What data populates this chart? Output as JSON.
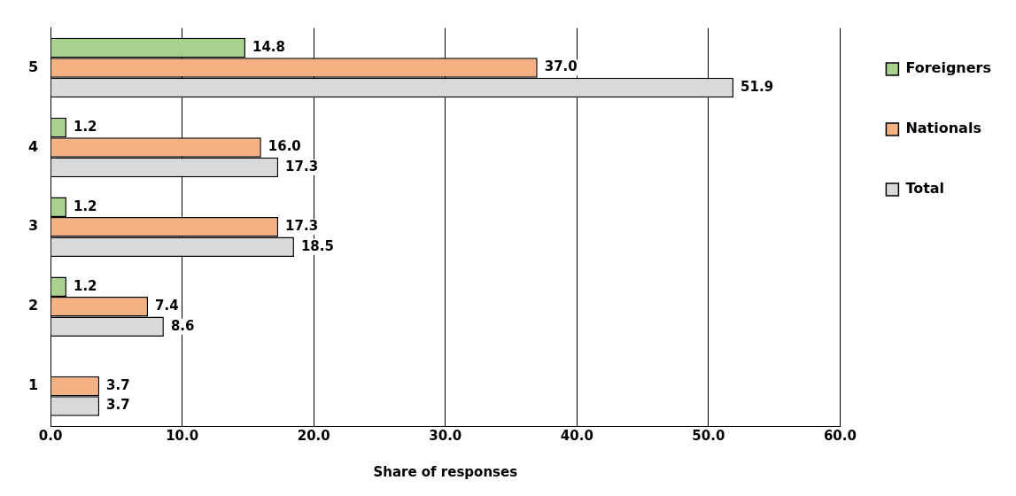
{
  "chart_data": {
    "type": "bar",
    "orientation": "horizontal",
    "xlabel": "Share of responses",
    "categories": [
      "5",
      "4",
      "3",
      "2",
      "1"
    ],
    "series": [
      {
        "name": "Foreigners",
        "color": "#a9d18e",
        "values": [
          14.8,
          1.2,
          1.2,
          1.2,
          null
        ],
        "value_labels": [
          "14.8",
          "1.2",
          "1.2",
          "1.2",
          null
        ]
      },
      {
        "name": "Nationals",
        "color": "#f4b183",
        "values": [
          37.0,
          16.0,
          17.3,
          7.4,
          3.7
        ],
        "value_labels": [
          "37.0",
          "16.0",
          "17.3",
          "7.4",
          "3.7"
        ]
      },
      {
        "name": "Total",
        "color": "#d9d9d9",
        "values": [
          51.9,
          17.3,
          18.5,
          8.6,
          3.7
        ],
        "value_labels": [
          "51.9",
          "17.3",
          "18.5",
          "8.6",
          "3.7"
        ]
      }
    ],
    "xlim": [
      0,
      60
    ],
    "xticks": [
      {
        "value": 0,
        "label": "0.0"
      },
      {
        "value": 10,
        "label": "10.0"
      },
      {
        "value": 20,
        "label": "20.0"
      },
      {
        "value": 30,
        "label": "30.0"
      },
      {
        "value": 40,
        "label": "40.0"
      },
      {
        "value": 50,
        "label": "50.0"
      },
      {
        "value": 60,
        "label": "60.0"
      }
    ],
    "grid": "x",
    "legend": "right"
  }
}
